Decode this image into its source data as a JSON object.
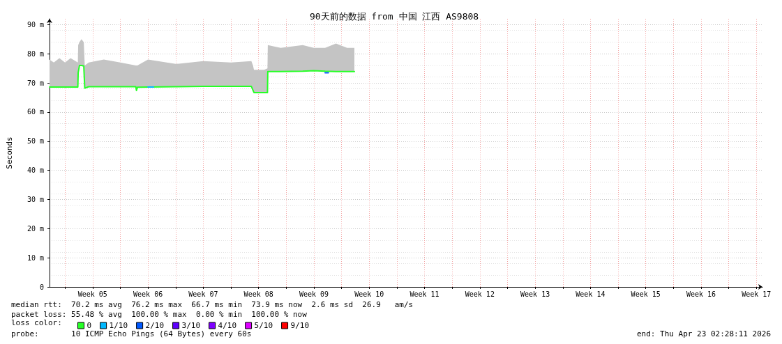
{
  "chart_data": {
    "type": "line",
    "title": "90天前的数据 from 中国 江西 AS9808",
    "ylabel": "Seconds",
    "xlim": [
      "2026-01-24T01:00",
      "2026-04-24T06:30"
    ],
    "xticks": [
      {
        "value": "2026-01-26",
        "label": null
      },
      {
        "value": "2026-01-29T12:00",
        "label": "Week 05"
      },
      {
        "value": "2026-02-02",
        "label": null
      },
      {
        "value": "2026-02-05T12:00",
        "label": "Week 06"
      },
      {
        "value": "2026-02-09",
        "label": null
      },
      {
        "value": "2026-02-12T12:00",
        "label": "Week 07"
      },
      {
        "value": "2026-02-16",
        "label": null
      },
      {
        "value": "2026-02-19T12:00",
        "label": "Week 08"
      },
      {
        "value": "2026-02-23",
        "label": null
      },
      {
        "value": "2026-02-26T12:00",
        "label": "Week 09"
      },
      {
        "value": "2026-03-02",
        "label": null
      },
      {
        "value": "2026-03-05T12:00",
        "label": "Week 10"
      },
      {
        "value": "2026-03-09",
        "label": null
      },
      {
        "value": "2026-03-12T12:00",
        "label": "Week 11"
      },
      {
        "value": "2026-03-16",
        "label": null
      },
      {
        "value": "2026-03-19T12:00",
        "label": "Week 12"
      },
      {
        "value": "2026-03-23",
        "label": null
      },
      {
        "value": "2026-03-26T12:00",
        "label": "Week 13"
      },
      {
        "value": "2026-03-30",
        "label": null
      },
      {
        "value": "2026-04-02T12:00",
        "label": "Week 14"
      },
      {
        "value": "2026-04-06",
        "label": null
      },
      {
        "value": "2026-04-09T12:00",
        "label": "Week 15"
      },
      {
        "value": "2026-04-13",
        "label": null
      },
      {
        "value": "2026-04-16T12:00",
        "label": "Week 16"
      },
      {
        "value": "2026-04-20",
        "label": null
      },
      {
        "value": "2026-04-23T12:00",
        "label": "Week 17"
      }
    ],
    "ylim": [
      0,
      92
    ],
    "yticks": [
      0,
      {
        "value": 10,
        "label": "10 m"
      },
      {
        "value": 20,
        "label": "20 m"
      },
      {
        "value": 30,
        "label": "30 m"
      },
      {
        "value": 40,
        "label": "40 m"
      },
      {
        "value": 50,
        "label": "50 m"
      },
      {
        "value": 60,
        "label": "60 m"
      },
      {
        "value": 70,
        "label": "70 m"
      },
      {
        "value": 80,
        "label": "80 m"
      },
      {
        "value": 90,
        "label": "90 m"
      }
    ],
    "grid": true,
    "legend": "bottom left",
    "legend_title": "loss color:",
    "marker": "none",
    "series": [
      {
        "name": "0",
        "color": "#26ff26",
        "x": [
          "2026-01-24T01:00",
          "2026-01-24T14:00",
          "2026-01-25T07:00",
          "2026-01-26T00:00",
          "2026-01-26T17:00",
          "2026-01-27T15:00",
          "2026-01-27T16:00",
          "2026-01-27T20:00",
          "2026-01-28T02:00",
          "2026-01-28T09:00",
          "2026-01-28T12:00",
          "2026-01-29T00:00",
          "2026-01-30T22:00",
          "2026-02-02T00:00",
          "2026-02-03T23:00",
          "2026-02-04T01:00",
          "2026-02-04T04:00",
          "2026-02-05T12:00",
          "2026-02-09T00:00",
          "2026-02-12T12:00",
          "2026-02-16T00:00",
          "2026-02-18T14:00",
          "2026-02-18T19:00",
          "2026-02-18T22:00",
          "2026-02-20T05:00",
          "2026-02-20T15:00",
          "2026-02-20T16:00",
          "2026-02-22T07:00",
          "2026-02-25T02:00",
          "2026-02-26T12:00",
          "2026-02-27T22:00",
          "2026-03-01T07:00",
          "2026-03-02T17:00",
          "2026-03-03T15:00"
        ],
        "values": [
          68.6,
          68.6,
          68.6,
          68.6,
          68.6,
          68.6,
          73.5,
          76,
          76,
          75.8,
          68.2,
          68.7,
          68.7,
          68.7,
          68.7,
          67.4,
          68.5,
          68.6,
          68.7,
          68.8,
          68.8,
          68.8,
          67.5,
          66.7,
          66.7,
          66.7,
          73.9,
          73.9,
          74.0,
          74.2,
          74.0,
          73.9,
          73.9,
          73.9
        ],
        "lower": [
          68.6,
          68.6,
          68.6,
          68.6,
          68.6,
          68.6,
          73.5,
          76,
          76,
          75.8,
          68.2,
          68.7,
          68.7,
          68.7,
          68.7,
          67.4,
          68.5,
          68.6,
          68.7,
          68.8,
          68.8,
          68.8,
          67.5,
          66.7,
          66.7,
          66.7,
          73.9,
          73.9,
          74.0,
          74.2,
          74.0,
          73.9,
          73.9,
          73.9
        ],
        "upper": [
          78,
          77,
          78.5,
          77,
          78.5,
          77,
          83,
          84,
          85,
          84,
          76,
          77,
          78,
          77,
          76,
          76,
          76,
          78,
          76.5,
          77.5,
          77,
          77.5,
          76,
          74.5,
          74.5,
          75,
          83,
          82,
          83,
          82,
          82,
          83.5,
          82,
          82
        ]
      },
      {
        "name": "1/10",
        "color": "#00b8ff",
        "x": [
          "2026-02-05T12:00",
          "2026-02-06T05:00"
        ],
        "values": [
          68.6,
          68.6
        ]
      },
      {
        "name": "2/10",
        "color": "#0059ff",
        "x": [
          "2026-02-27T22:00",
          "2026-02-28T08:00"
        ],
        "values": [
          73.5,
          73.5
        ]
      },
      {
        "name": "3/10",
        "color": "#5e00ff"
      },
      {
        "name": "4/10",
        "color": "#7e00ff"
      },
      {
        "name": "5/10",
        "color": "#dd00ff"
      },
      {
        "name": "9/10",
        "color": "#ff0000"
      }
    ],
    "annotations": [
      "median rtt:  70.2 ms avg  76.2 ms max  66.7 ms min  73.9 ms now  2.6 ms sd  26.9   am/s",
      "packet loss: 55.48 % avg  100.00 % max  0.00 % min  100.00 % now",
      "probe:       10 ICMP Echo Pings (64 Bytes) every 60s",
      "end: Thu Apr 23 02:28:11 2026"
    ]
  }
}
